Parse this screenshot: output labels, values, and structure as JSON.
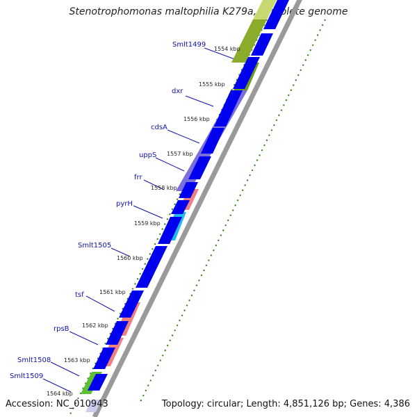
{
  "title": "Stenotrophomonas maltophilia K279a, complete genome",
  "accession": "Accession: NC_010943",
  "summary": "Topology: circular; Length: 4,851,126 bp; Genes: 4,386",
  "colors": {
    "cds_forward": "#0000ee",
    "gene_purple": "#7b6fdc",
    "gene_olive": "#6f9a22",
    "gene_pink": "#ee8080",
    "gene_cyan": "#22b8f0",
    "gene_green": "#5cc030",
    "tick_dots": "#2a7a10",
    "backbone": "#999999",
    "label_text": "#1111aa"
  },
  "kbp_ticks": [
    "1554 kbp",
    "1555 kbp",
    "1556 kbp",
    "1557 kbp",
    "1558 kbp",
    "1559 kbp",
    "1560 kbp",
    "1561 kbp",
    "1562 kbp",
    "1563 kbp",
    "1564 kbp"
  ],
  "gene_labels": [
    "Smlt1499",
    "dxr",
    "cdsA",
    "uppS",
    "frr",
    "pyrH",
    "Smlt1505",
    "tsf",
    "rpsB",
    "Smlt1508",
    "Smlt1509"
  ]
}
